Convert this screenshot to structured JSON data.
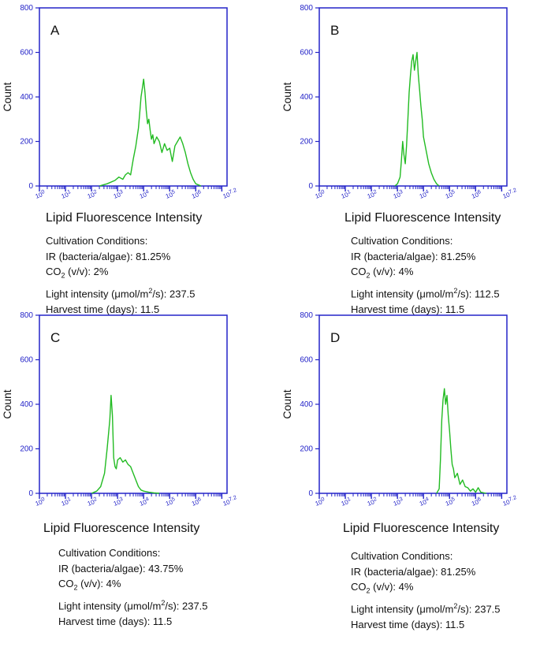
{
  "colors": {
    "axis": "#2323c8",
    "series": "#22bb22",
    "text": "#111111"
  },
  "chart_data": [
    {
      "type": "line",
      "panel": "A",
      "letter": "A",
      "xlabel": "Lipid Fluorescence Intensity",
      "ylabel": "Count",
      "xlim": [
        0,
        7.2
      ],
      "ylim": [
        0,
        800
      ],
      "yticks": [
        0,
        200,
        400,
        600,
        800
      ],
      "ytick_labels": [
        "0",
        "200",
        "400",
        "600",
        "800"
      ],
      "xtick_labels": [
        "10^0",
        "10^1",
        "10^2",
        "10^3",
        "10^4",
        "10^5",
        "10^6",
        "10^7.2"
      ],
      "series": [
        {
          "name": "Lipid Fluorescence",
          "x": [
            2.3,
            2.6,
            2.9,
            3.05,
            3.2,
            3.3,
            3.4,
            3.5,
            3.6,
            3.7,
            3.8,
            3.85,
            3.9,
            3.95,
            4.0,
            4.05,
            4.1,
            4.15,
            4.2,
            4.25,
            4.3,
            4.35,
            4.4,
            4.5,
            4.6,
            4.7,
            4.8,
            4.9,
            5.0,
            5.05,
            5.1,
            5.2,
            5.3,
            5.4,
            5.5,
            5.6,
            5.7,
            5.8,
            5.9,
            6.0,
            6.2
          ],
          "y": [
            0,
            10,
            25,
            40,
            30,
            50,
            60,
            50,
            120,
            180,
            260,
            330,
            400,
            440,
            480,
            420,
            340,
            280,
            300,
            250,
            210,
            230,
            190,
            220,
            200,
            150,
            190,
            160,
            170,
            140,
            110,
            180,
            200,
            220,
            190,
            150,
            100,
            60,
            30,
            10,
            0
          ]
        }
      ],
      "conditions": {
        "heading": "Cultivation Conditions:",
        "ir": "IR (bacteria/algae): 81.25%",
        "co2_pre": "CO",
        "co2_sub": "2",
        "co2_post": " (v/v): 2%",
        "light_pre": "Light intensity (μmol/m",
        "light_sup": "2",
        "light_post": "/s): 237.5",
        "harvest": "Harvest time (days): 11.5"
      }
    },
    {
      "type": "line",
      "panel": "B",
      "letter": "B",
      "xlabel": "Lipid Fluorescence Intensity",
      "ylabel": "Count",
      "xlim": [
        0,
        7.2
      ],
      "ylim": [
        0,
        800
      ],
      "yticks": [
        0,
        200,
        400,
        600,
        800
      ],
      "ytick_labels": [
        "0",
        "200",
        "400",
        "600",
        "800"
      ],
      "xtick_labels": [
        "10^0",
        "10^1",
        "10^2",
        "10^3",
        "10^4",
        "10^5",
        "10^6",
        "10^7.2"
      ],
      "series": [
        {
          "name": "Lipid Fluorescence",
          "x": [
            2.9,
            3.0,
            3.1,
            3.15,
            3.2,
            3.25,
            3.3,
            3.35,
            3.4,
            3.45,
            3.5,
            3.55,
            3.6,
            3.65,
            3.7,
            3.75,
            3.8,
            3.85,
            3.9,
            3.95,
            4.0,
            4.1,
            4.2,
            4.3,
            4.4,
            4.5,
            4.6
          ],
          "y": [
            0,
            10,
            40,
            110,
            200,
            140,
            100,
            180,
            300,
            420,
            500,
            560,
            590,
            520,
            560,
            600,
            500,
            430,
            360,
            300,
            220,
            160,
            100,
            60,
            30,
            10,
            0
          ]
        }
      ],
      "conditions": {
        "heading": "Cultivation Conditions:",
        "ir": "IR (bacteria/algae): 81.25%",
        "co2_pre": "CO",
        "co2_sub": "2",
        "co2_post": " (v/v): 4%",
        "light_pre": "Light intensity (μmol/m",
        "light_sup": "2",
        "light_post": "/s): 112.5",
        "harvest": "Harvest time (days): 11.5"
      }
    },
    {
      "type": "line",
      "panel": "C",
      "letter": "C",
      "xlabel": "Lipid Fluorescence Intensity",
      "ylabel": "Count",
      "xlim": [
        0,
        7.2
      ],
      "ylim": [
        0,
        800
      ],
      "yticks": [
        0,
        200,
        400,
        600,
        800
      ],
      "ytick_labels": [
        "0",
        "200",
        "400",
        "600",
        "800"
      ],
      "xtick_labels": [
        "10^0",
        "10^1",
        "10^2",
        "10^3",
        "10^4",
        "10^5",
        "10^6",
        "10^7.2"
      ],
      "series": [
        {
          "name": "Lipid Fluorescence",
          "x": [
            2.0,
            2.2,
            2.35,
            2.5,
            2.6,
            2.7,
            2.75,
            2.8,
            2.85,
            2.9,
            2.95,
            3.0,
            3.1,
            3.2,
            3.3,
            3.4,
            3.5,
            3.6,
            3.7,
            3.8,
            3.9,
            4.0,
            4.2,
            4.4,
            4.6
          ],
          "y": [
            0,
            10,
            30,
            90,
            200,
            330,
            440,
            350,
            160,
            120,
            110,
            150,
            160,
            140,
            150,
            130,
            120,
            90,
            60,
            30,
            15,
            10,
            5,
            2,
            0
          ]
        }
      ],
      "conditions": {
        "heading": "Cultivation Conditions:",
        "ir": "IR (bacteria/algae): 43.75%",
        "co2_pre": "CO",
        "co2_sub": "2",
        "co2_post": " (v/v): 4%",
        "light_pre": "Light intensity (μmol/m",
        "light_sup": "2",
        "light_post": "/s): 237.5",
        "harvest": "Harvest time (days): 11.5"
      }
    },
    {
      "type": "line",
      "panel": "D",
      "letter": "D",
      "xlabel": "Lipid Fluorescence Intensity",
      "ylabel": "Count",
      "xlim": [
        0,
        7.2
      ],
      "ylim": [
        0,
        800
      ],
      "yticks": [
        0,
        200,
        400,
        600,
        800
      ],
      "ytick_labels": [
        "0",
        "200",
        "400",
        "600",
        "800"
      ],
      "xtick_labels": [
        "10^0",
        "10^1",
        "10^2",
        "10^3",
        "10^4",
        "10^5",
        "10^6",
        "10^7.2"
      ],
      "series": [
        {
          "name": "Lipid Fluorescence",
          "x": [
            4.5,
            4.6,
            4.65,
            4.7,
            4.75,
            4.8,
            4.85,
            4.9,
            4.95,
            5.0,
            5.05,
            5.1,
            5.15,
            5.2,
            5.3,
            5.4,
            5.5,
            5.6,
            5.7,
            5.8,
            5.9,
            6.0,
            6.1,
            6.2,
            6.4
          ],
          "y": [
            0,
            20,
            150,
            330,
            420,
            470,
            400,
            440,
            350,
            280,
            200,
            130,
            110,
            70,
            90,
            40,
            60,
            30,
            25,
            10,
            20,
            5,
            25,
            5,
            0
          ]
        }
      ],
      "conditions": {
        "heading": "Cultivation Conditions:",
        "ir": "IR (bacteria/algae): 81.25%",
        "co2_pre": "CO",
        "co2_sub": "2",
        "co2_post": " (v/v): 4%",
        "light_pre": "Light intensity (μmol/m",
        "light_sup": "2",
        "light_post": "/s): 237.5",
        "harvest": "Harvest time (days): 11.5"
      }
    }
  ]
}
